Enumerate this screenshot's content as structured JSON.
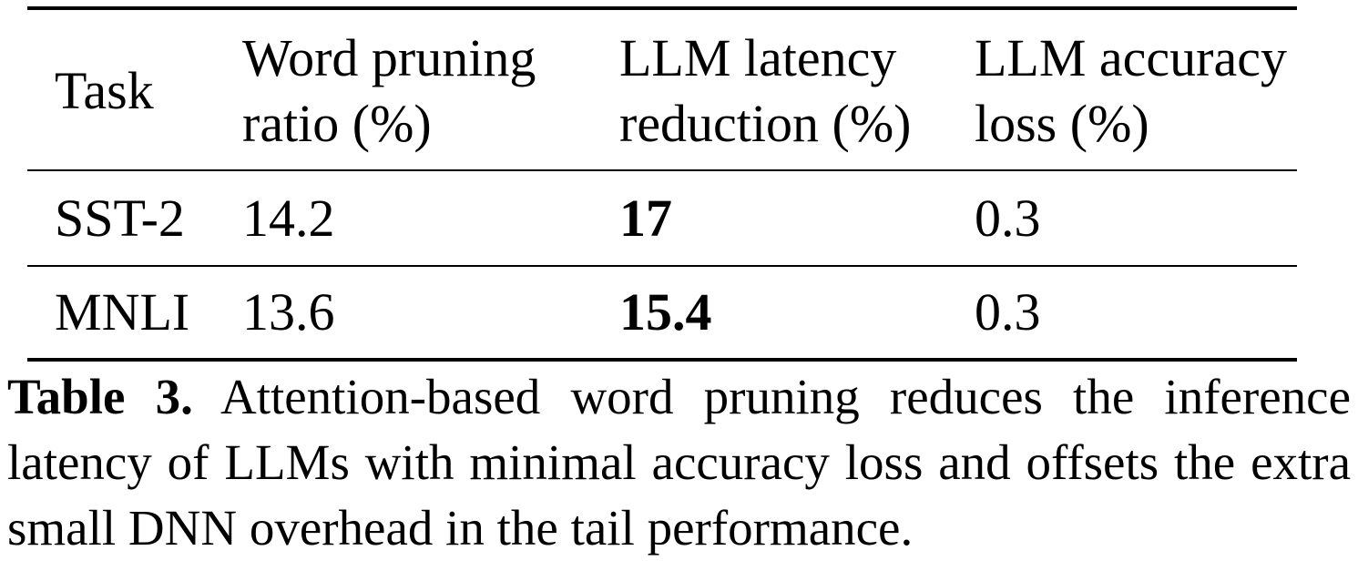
{
  "table": {
    "headers": [
      {
        "line1": "Task",
        "line2": ""
      },
      {
        "line1": "Word pruning",
        "line2": "ratio (%)"
      },
      {
        "line1": "LLM latency",
        "line2": "reduction (%)"
      },
      {
        "line1": "LLM accuracy",
        "line2": "loss (%)"
      }
    ],
    "rows": [
      {
        "task": "SST-2",
        "pruning_ratio": "14.2",
        "latency_reduction": "17",
        "accuracy_loss": "0.3"
      },
      {
        "task": "MNLI",
        "pruning_ratio": "13.6",
        "latency_reduction": "15.4",
        "accuracy_loss": "0.3"
      }
    ]
  },
  "caption": {
    "label": "Table 3.",
    "text": "Attention-based word pruning reduces the inference latency of LLMs with minimal accuracy loss and offsets the extra small DNN overhead in the tail performance."
  }
}
